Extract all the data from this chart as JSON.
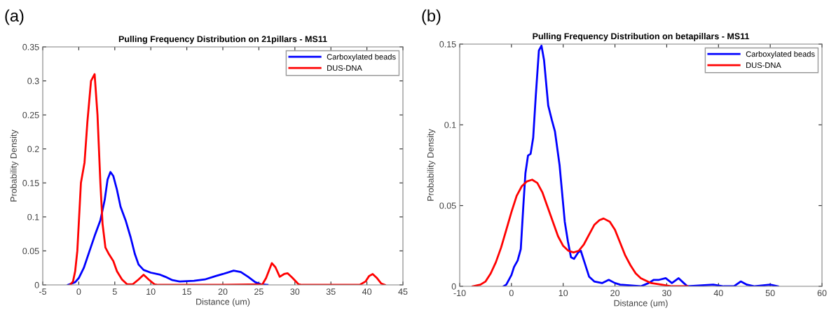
{
  "chart_data": [
    {
      "type": "line",
      "title": "Pulling Frequency Distribution on 21pillars - MS11",
      "xlabel": "Distance (um)",
      "ylabel": "Probability Density",
      "annotations": [
        "(a)"
      ],
      "legend": "top right",
      "grid": false,
      "xlim": [
        -5,
        45
      ],
      "xticks": [
        -5,
        0,
        5,
        10,
        15,
        20,
        25,
        30,
        35,
        40,
        45
      ],
      "ylim": [
        0,
        0.35
      ],
      "yticks": [
        0,
        0.05,
        0.1,
        0.15,
        0.2,
        0.25,
        0.3,
        0.35
      ],
      "series": [
        {
          "name": "Carboxylated beads",
          "color": "#0000ff",
          "x": [
            -1.5,
            -0.5,
            0,
            0.7,
            1.5,
            2.3,
            3,
            3.6,
            4.0,
            4.4,
            4.8,
            5.3,
            5.8,
            6.5,
            7.2,
            7.8,
            8.3,
            9,
            10,
            11.3,
            12,
            13,
            14,
            16,
            17.5,
            19,
            20,
            21.5,
            22.5,
            23.5,
            24.5,
            25.3,
            26.2
          ],
          "values": [
            0,
            0.004,
            0.01,
            0.025,
            0.05,
            0.075,
            0.095,
            0.125,
            0.155,
            0.166,
            0.16,
            0.14,
            0.115,
            0.095,
            0.07,
            0.045,
            0.03,
            0.022,
            0.018,
            0.015,
            0.012,
            0.007,
            0.005,
            0.006,
            0.008,
            0.013,
            0.016,
            0.021,
            0.019,
            0.012,
            0.004,
            0.001,
            0
          ]
        },
        {
          "name": "DUS-DNA",
          "color": "#ff0000",
          "x": [
            -1.2,
            -0.8,
            -0.5,
            -0.2,
            0,
            0.3,
            0.8,
            1.2,
            1.7,
            2.2,
            2.6,
            3.0,
            3.3,
            3.7,
            4.2,
            4.8,
            5.3,
            6,
            6.7,
            7.5,
            8.3,
            9,
            9.7,
            10.5,
            11,
            20,
            25.5,
            26,
            26.8,
            27.3,
            27.9,
            28.5,
            29,
            29.6,
            30.5,
            31,
            39,
            39.8,
            40.3,
            40.8,
            41.4,
            42,
            42.5
          ],
          "values": [
            0,
            0.005,
            0.02,
            0.05,
            0.09,
            0.15,
            0.18,
            0.24,
            0.3,
            0.31,
            0.25,
            0.15,
            0.09,
            0.055,
            0.045,
            0.035,
            0.02,
            0.008,
            0.001,
            0.001,
            0.008,
            0.015,
            0.008,
            0.001,
            0,
            0,
            0.001,
            0.01,
            0.032,
            0.026,
            0.012,
            0.016,
            0.017,
            0.011,
            0.001,
            0,
            0,
            0.005,
            0.013,
            0.016,
            0.01,
            0.002,
            0
          ]
        }
      ]
    },
    {
      "type": "line",
      "title": "Pulling Frequency Distribution on betapillars - MS11",
      "xlabel": "Distance (um)",
      "ylabel": "Probability Density",
      "annotations": [
        "(b)"
      ],
      "legend": "top right",
      "grid": false,
      "xlim": [
        -10,
        60
      ],
      "xticks": [
        -10,
        0,
        10,
        20,
        30,
        40,
        50,
        60
      ],
      "ylim": [
        0,
        0.15
      ],
      "yticks": [
        0,
        0.05,
        0.1,
        0.15
      ],
      "series": [
        {
          "name": "Carboxylated beads",
          "color": "#0000ff",
          "x": [
            -1.5,
            -1,
            0,
            0.5,
            1.2,
            1.8,
            2.3,
            2.7,
            3.2,
            3.7,
            4.2,
            4.7,
            5.3,
            5.8,
            6.3,
            7.1,
            7.8,
            8.4,
            9.3,
            10.3,
            10.9,
            11.5,
            12.1,
            12.9,
            13.4,
            14,
            15,
            16,
            17.5,
            18.8,
            20,
            21,
            25,
            26.5,
            27.5,
            28.5,
            29.8,
            31,
            32.3,
            33.3,
            34,
            39,
            41,
            43,
            44.3,
            45.5,
            47,
            50,
            51.5
          ],
          "values": [
            0,
            0.001,
            0.007,
            0.012,
            0.016,
            0.023,
            0.05,
            0.07,
            0.081,
            0.082,
            0.092,
            0.118,
            0.146,
            0.149,
            0.14,
            0.112,
            0.103,
            0.096,
            0.075,
            0.04,
            0.028,
            0.018,
            0.017,
            0.021,
            0.022,
            0.016,
            0.006,
            0.003,
            0.002,
            0.004,
            0.002,
            0.001,
            0,
            0.002,
            0.004,
            0.004,
            0.005,
            0.002,
            0.005,
            0.002,
            0,
            0.001,
            0,
            0,
            0.003,
            0.001,
            0,
            0.001,
            0
          ]
        },
        {
          "name": "DUS-DNA",
          "color": "#ff0000",
          "x": [
            -7.5,
            -6,
            -5,
            -4,
            -3,
            -2,
            -1,
            0,
            1,
            2,
            3,
            4,
            5,
            6,
            7,
            8,
            9,
            10,
            11,
            12,
            13,
            14,
            15,
            16,
            17,
            17.8,
            19,
            20,
            21,
            22,
            23,
            24,
            25,
            27,
            29,
            31,
            34
          ],
          "values": [
            0,
            0.001,
            0.003,
            0.008,
            0.015,
            0.024,
            0.035,
            0.046,
            0.056,
            0.062,
            0.065,
            0.066,
            0.064,
            0.058,
            0.049,
            0.04,
            0.031,
            0.025,
            0.022,
            0.021,
            0.022,
            0.026,
            0.032,
            0.038,
            0.041,
            0.042,
            0.04,
            0.035,
            0.027,
            0.019,
            0.013,
            0.008,
            0.005,
            0.002,
            0.001,
            0,
            0
          ]
        }
      ]
    }
  ]
}
